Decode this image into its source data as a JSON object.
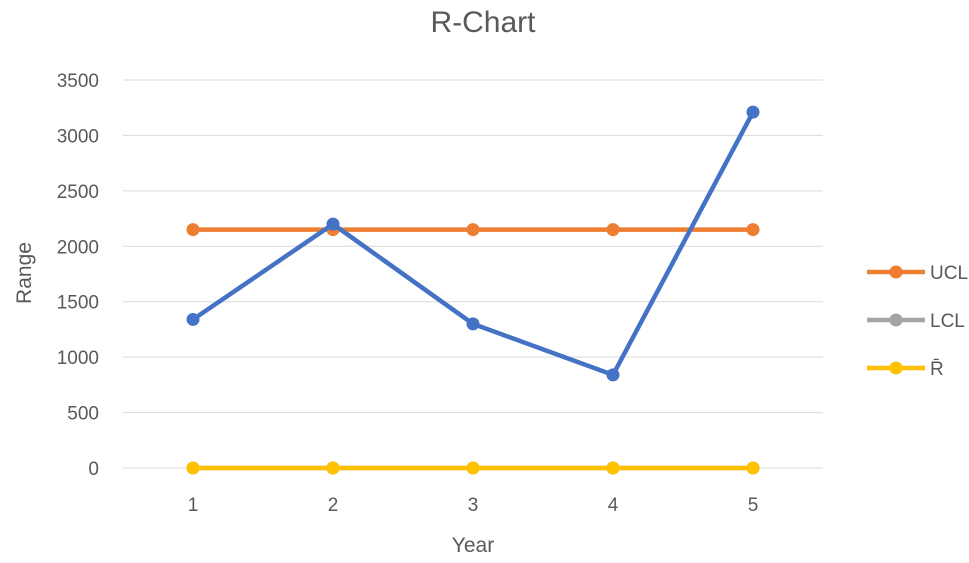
{
  "chart_data": {
    "type": "line",
    "title": "R-Chart",
    "xlabel": "Year",
    "ylabel": "Range",
    "x": [
      "1",
      "2",
      "3",
      "4",
      "5"
    ],
    "ylim": [
      0,
      3500
    ],
    "yticks": [
      0,
      500,
      1000,
      1500,
      2000,
      2500,
      3000,
      3500
    ],
    "grid": true,
    "legend_position": "right",
    "series": [
      {
        "name": "Range",
        "color": "#4472c4",
        "values": [
          1340,
          2200,
          1300,
          840,
          3210
        ],
        "in_legend": false
      },
      {
        "name": "UCL",
        "color": "#ed7d31",
        "values": [
          2150,
          2150,
          2150,
          2150,
          2150
        ],
        "in_legend": true
      },
      {
        "name": "LCL",
        "color": "#a5a5a5",
        "values": [
          0,
          0,
          0,
          0,
          0
        ],
        "in_legend": true
      },
      {
        "name": "R̄",
        "color": "#ffc000",
        "values": [
          0,
          0,
          0,
          0,
          0
        ],
        "in_legend": true
      }
    ]
  }
}
